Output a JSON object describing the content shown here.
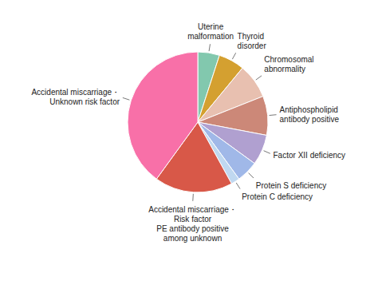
{
  "chart_data": {
    "type": "pie",
    "categories": [
      "Uterine\nmalformation",
      "Thyroid\ndisorder",
      "Chromosomal\nabnormality",
      "Antiphospholipid\nantibody positive",
      "Factor XII deficiency",
      "Protein S deficiency",
      "Protein C deficiency",
      "Accidental miscarriage・\nRisk factor\nPE antibody positive\namong unknown",
      "Accidental miscarriage・\nUnknown risk factor"
    ],
    "values": [
      5,
      6,
      8,
      9,
      7,
      5,
      2,
      18,
      40
    ],
    "colors": [
      "#82c8ae",
      "#d4a030",
      "#e8c0b0",
      "#cc8878",
      "#b0a0d0",
      "#a0b8e8",
      "#c0d8f0",
      "#d85848",
      "#f870a8"
    ]
  }
}
